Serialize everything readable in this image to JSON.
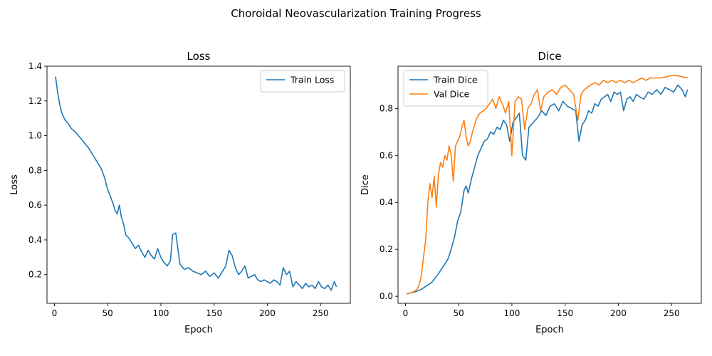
{
  "title": "Choroidal Neovascularization Training Progress",
  "colors": {
    "train": "#1f77b4",
    "val": "#ff7f0e"
  },
  "chart_data": [
    {
      "type": "line",
      "title": "Loss",
      "xlabel": "Epoch",
      "ylabel": "Loss",
      "xlim": [
        -7,
        278
      ],
      "ylim": [
        0.035,
        1.4
      ],
      "xticks": [
        0,
        50,
        100,
        150,
        200,
        250
      ],
      "yticks": [
        0.2,
        0.4,
        0.6,
        0.8,
        1.0,
        1.2,
        1.4
      ],
      "legend_position": "top-right",
      "series": [
        {
          "name": "Train Loss",
          "color": "#1f77b4",
          "x": [
            1,
            3,
            5,
            7,
            10,
            13,
            16,
            20,
            24,
            28,
            32,
            35,
            38,
            41,
            44,
            47,
            50,
            52,
            55,
            57,
            59,
            61,
            63,
            65,
            67,
            70,
            73,
            76,
            79,
            82,
            85,
            88,
            91,
            94,
            97,
            100,
            103,
            106,
            109,
            111,
            114,
            118,
            122,
            126,
            130,
            134,
            138,
            142,
            146,
            150,
            154,
            158,
            161,
            164,
            167,
            170,
            173,
            176,
            179,
            182,
            185,
            188,
            191,
            194,
            197,
            200,
            203,
            206,
            209,
            212,
            215,
            218,
            221,
            224,
            227,
            230,
            233,
            236,
            239,
            242,
            245,
            248,
            251,
            254,
            257,
            260,
            263,
            265
          ],
          "y": [
            1.34,
            1.25,
            1.18,
            1.13,
            1.09,
            1.07,
            1.04,
            1.02,
            0.99,
            0.96,
            0.93,
            0.9,
            0.87,
            0.84,
            0.81,
            0.76,
            0.69,
            0.66,
            0.61,
            0.57,
            0.55,
            0.6,
            0.53,
            0.49,
            0.43,
            0.41,
            0.38,
            0.35,
            0.37,
            0.33,
            0.3,
            0.34,
            0.31,
            0.29,
            0.35,
            0.3,
            0.27,
            0.25,
            0.28,
            0.43,
            0.44,
            0.26,
            0.23,
            0.24,
            0.22,
            0.21,
            0.2,
            0.22,
            0.19,
            0.21,
            0.18,
            0.22,
            0.25,
            0.34,
            0.31,
            0.24,
            0.2,
            0.22,
            0.25,
            0.18,
            0.19,
            0.2,
            0.17,
            0.16,
            0.17,
            0.16,
            0.15,
            0.17,
            0.16,
            0.14,
            0.24,
            0.2,
            0.22,
            0.13,
            0.16,
            0.14,
            0.12,
            0.15,
            0.13,
            0.14,
            0.12,
            0.16,
            0.13,
            0.12,
            0.14,
            0.11,
            0.16,
            0.13
          ]
        }
      ]
    },
    {
      "type": "line",
      "title": "Dice",
      "xlabel": "Epoch",
      "ylabel": "Dice",
      "xlim": [
        -7,
        278
      ],
      "ylim": [
        -0.03,
        0.98
      ],
      "xticks": [
        0,
        50,
        100,
        150,
        200,
        250
      ],
      "yticks": [
        0.0,
        0.2,
        0.4,
        0.6,
        0.8
      ],
      "legend_position": "top-left",
      "series": [
        {
          "name": "Train Dice",
          "color": "#1f77b4",
          "x": [
            1,
            5,
            10,
            15,
            20,
            25,
            30,
            33,
            36,
            40,
            43,
            46,
            49,
            52,
            55,
            57,
            59,
            62,
            65,
            68,
            71,
            74,
            77,
            80,
            83,
            86,
            89,
            92,
            95,
            98,
            101,
            104,
            107,
            110,
            113,
            116,
            120,
            124,
            128,
            132,
            136,
            140,
            144,
            148,
            152,
            156,
            160,
            163,
            166,
            169,
            172,
            175,
            178,
            181,
            184,
            187,
            190,
            193,
            196,
            199,
            202,
            205,
            208,
            211,
            214,
            217,
            220,
            224,
            228,
            232,
            236,
            240,
            244,
            248,
            252,
            256,
            260,
            263,
            265
          ],
          "y": [
            0.01,
            0.015,
            0.02,
            0.03,
            0.045,
            0.06,
            0.09,
            0.11,
            0.13,
            0.16,
            0.2,
            0.25,
            0.32,
            0.36,
            0.45,
            0.47,
            0.44,
            0.5,
            0.55,
            0.6,
            0.63,
            0.66,
            0.67,
            0.7,
            0.69,
            0.72,
            0.71,
            0.75,
            0.73,
            0.66,
            0.74,
            0.76,
            0.78,
            0.6,
            0.58,
            0.72,
            0.74,
            0.76,
            0.79,
            0.77,
            0.81,
            0.82,
            0.79,
            0.83,
            0.81,
            0.8,
            0.79,
            0.66,
            0.73,
            0.75,
            0.79,
            0.78,
            0.82,
            0.81,
            0.84,
            0.85,
            0.86,
            0.83,
            0.87,
            0.86,
            0.87,
            0.79,
            0.84,
            0.85,
            0.83,
            0.86,
            0.85,
            0.84,
            0.87,
            0.86,
            0.88,
            0.86,
            0.89,
            0.88,
            0.87,
            0.9,
            0.88,
            0.85,
            0.88
          ]
        },
        {
          "name": "Val Dice",
          "color": "#ff7f0e",
          "x": [
            1,
            5,
            8,
            11,
            13,
            15,
            17,
            19,
            21,
            23,
            25,
            27,
            29,
            31,
            33,
            35,
            37,
            39,
            41,
            43,
            45,
            47,
            49,
            51,
            53,
            55,
            57,
            59,
            61,
            63,
            65,
            67,
            70,
            73,
            76,
            79,
            82,
            85,
            88,
            91,
            94,
            97,
            100,
            103,
            106,
            109,
            112,
            115,
            118,
            121,
            124,
            127,
            130,
            134,
            138,
            142,
            146,
            150,
            154,
            158,
            162,
            165,
            168,
            171,
            174,
            178,
            182,
            186,
            190,
            194,
            198,
            202,
            206,
            210,
            214,
            218,
            222,
            226,
            230,
            235,
            240,
            245,
            250,
            255,
            260,
            265
          ],
          "y": [
            0.01,
            0.015,
            0.02,
            0.03,
            0.05,
            0.09,
            0.17,
            0.24,
            0.4,
            0.48,
            0.42,
            0.51,
            0.38,
            0.52,
            0.57,
            0.55,
            0.6,
            0.58,
            0.64,
            0.6,
            0.49,
            0.64,
            0.66,
            0.68,
            0.72,
            0.75,
            0.68,
            0.64,
            0.66,
            0.7,
            0.73,
            0.76,
            0.78,
            0.79,
            0.8,
            0.82,
            0.84,
            0.8,
            0.85,
            0.82,
            0.78,
            0.83,
            0.6,
            0.83,
            0.85,
            0.84,
            0.71,
            0.8,
            0.82,
            0.86,
            0.88,
            0.79,
            0.85,
            0.87,
            0.88,
            0.86,
            0.89,
            0.9,
            0.88,
            0.86,
            0.75,
            0.86,
            0.88,
            0.89,
            0.9,
            0.91,
            0.9,
            0.92,
            0.91,
            0.92,
            0.91,
            0.92,
            0.91,
            0.92,
            0.91,
            0.92,
            0.93,
            0.92,
            0.93,
            0.93,
            0.93,
            0.935,
            0.94,
            0.94,
            0.935,
            0.93
          ]
        }
      ]
    }
  ]
}
